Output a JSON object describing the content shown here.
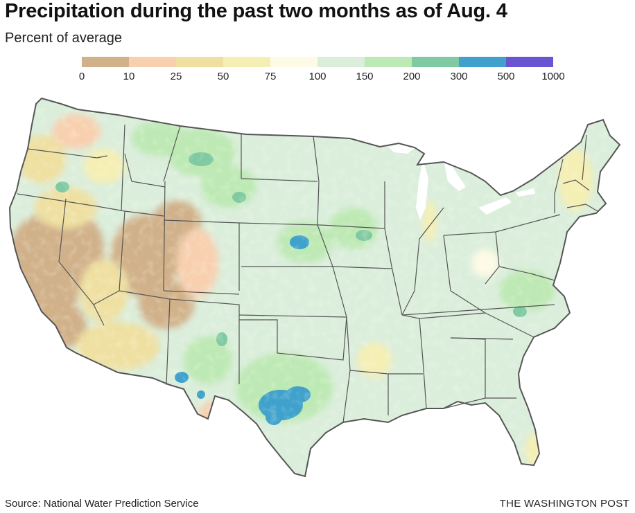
{
  "title": "Precipitation during the past two months as of Aug. 4",
  "subtitle": "Percent of average",
  "legend": {
    "ticks": [
      "0",
      "10",
      "25",
      "50",
      "75",
      "100",
      "150",
      "200",
      "300",
      "500",
      "1000"
    ],
    "bins": [
      {
        "from": "0",
        "to": "10",
        "color": "#d1b18a"
      },
      {
        "from": "10",
        "to": "25",
        "color": "#f8d0b0"
      },
      {
        "from": "25",
        "to": "50",
        "color": "#efe0a2"
      },
      {
        "from": "50",
        "to": "75",
        "color": "#f5efb4"
      },
      {
        "from": "75",
        "to": "100",
        "color": "#fdfbe5"
      },
      {
        "from": "100",
        "to": "150",
        "color": "#dbeedc"
      },
      {
        "from": "150",
        "to": "200",
        "color": "#bde9b4"
      },
      {
        "from": "200",
        "to": "300",
        "color": "#7fc9a3"
      },
      {
        "from": "300",
        "to": "500",
        "color": "#40a2cc"
      },
      {
        "from": "500",
        "to": "1000",
        "color": "#6a54d2"
      }
    ]
  },
  "map": {
    "region": "Contiguous United States",
    "state_border_color": "#555555",
    "base_fill": "#dbeedc"
  },
  "footer": {
    "source": "Source: National Water Prediction Service",
    "credit": "THE WASHINGTON POST"
  }
}
